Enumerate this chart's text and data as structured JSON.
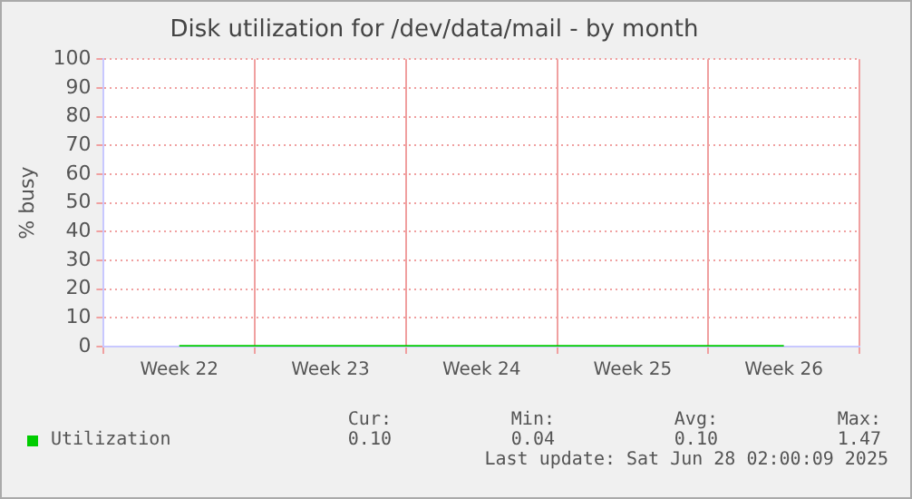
{
  "chart_data": {
    "type": "line",
    "title": "Disk utilization for /dev/data/mail - by month",
    "ylabel": "% busy",
    "categories": [
      "Week 22",
      "Week 23",
      "Week 24",
      "Week 25",
      "Week 26"
    ],
    "series": [
      {
        "name": "Utilization",
        "color": "#00cc00",
        "values": [
          0.1,
          0.1,
          0.1,
          0.1,
          0.1
        ]
      }
    ],
    "ylim": [
      0,
      100
    ],
    "yticks": [
      0,
      10,
      20,
      30,
      40,
      50,
      60,
      70,
      80,
      90,
      100
    ],
    "grid": true,
    "legend": "bottom",
    "marker": "none",
    "line_style": "solid",
    "annotations": [
      "Cur:",
      "0.10",
      "Min:",
      "0.04",
      "Avg:",
      "0.10",
      "Max:",
      "1.47",
      "Last update: Sat Jun 28 02:00:09 2025"
    ]
  }
}
